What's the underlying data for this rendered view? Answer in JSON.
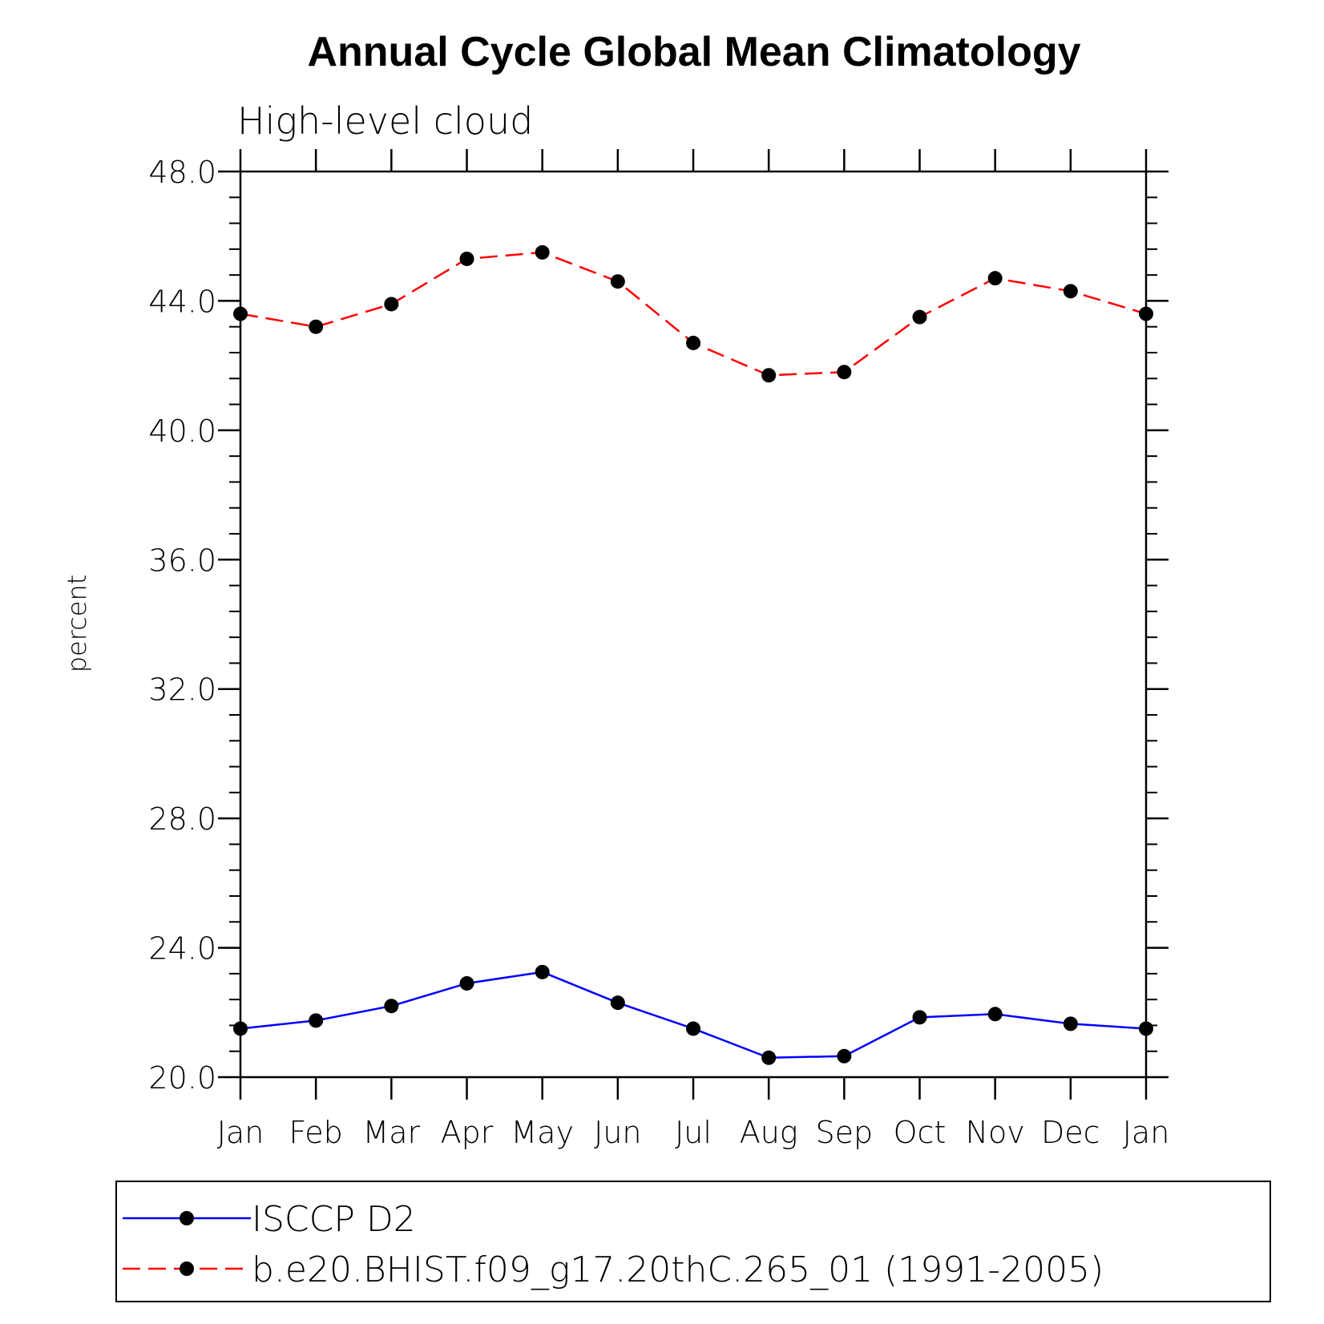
{
  "chart_data": {
    "type": "line",
    "title": "Annual Cycle Global Mean Climatology",
    "subtitle": "High-level cloud",
    "xlabel": "",
    "ylabel": "percent",
    "categories": [
      "Jan",
      "Feb",
      "Mar",
      "Apr",
      "May",
      "Jun",
      "Jul",
      "Aug",
      "Sep",
      "Oct",
      "Nov",
      "Dec",
      "Jan"
    ],
    "ylim": [
      20.0,
      48.0
    ],
    "yticks": [
      "20.0",
      "24.0",
      "28.0",
      "32.0",
      "36.0",
      "40.0",
      "44.0",
      "48.0"
    ],
    "grid": false,
    "legend_position": "bottom",
    "series": [
      {
        "name": "ISCCP D2",
        "color": "#0000ff",
        "line_style": "solid",
        "marker": "filled-circle",
        "values": [
          21.5,
          21.75,
          22.2,
          22.9,
          23.25,
          22.3,
          21.5,
          20.6,
          20.65,
          21.85,
          21.95,
          21.65,
          21.5
        ]
      },
      {
        "name": "b.e20.BHIST.f09_g17.20thC.265_01 (1991-2005)",
        "color": "#ff0000",
        "line_style": "dashed",
        "marker": "filled-circle",
        "values": [
          43.6,
          43.2,
          43.9,
          45.3,
          45.5,
          44.6,
          42.7,
          41.7,
          41.8,
          43.5,
          44.7,
          44.3,
          43.6
        ]
      }
    ]
  }
}
